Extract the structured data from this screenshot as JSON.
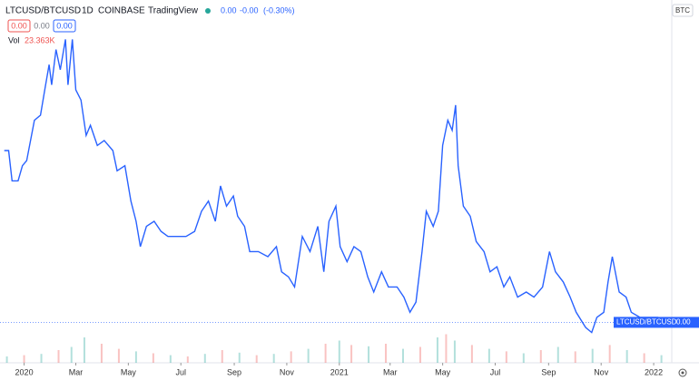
{
  "header": {
    "symbol": "LTCUSD/BTCUSD",
    "interval": "1D",
    "exchange": "COINBASE",
    "source": "TradingView",
    "last": "0.00",
    "change": "-0.00",
    "change_pct": "(-0.30%)",
    "buttons": [
      "0.00",
      "0.00",
      "0.00"
    ],
    "vol_label": "Vol",
    "vol_value": "23.363K",
    "currency": "BTC",
    "price_tag_name": "LTCUSD/BTCUSD",
    "price_tag_value": "0.00"
  },
  "chart_data": {
    "type": "line",
    "color": "#2962ff",
    "x": [
      -23,
      -18,
      -14,
      -7,
      -2,
      3,
      12,
      19,
      24,
      29,
      32,
      37,
      42,
      48,
      51,
      56,
      60,
      66,
      72,
      77,
      85,
      93,
      103,
      108,
      117,
      124,
      130,
      135,
      142,
      151,
      159,
      167,
      177,
      188,
      198,
      206,
      214,
      222,
      228,
      235,
      243,
      248,
      256,
      262,
      272,
      283,
      293,
      299,
      307,
      314,
      323,
      332,
      341,
      348,
      354,
      362,
      367,
      375,
      383,
      391,
      399,
      406,
      415,
      423,
      433,
      441,
      448,
      455,
      462,
      467,
      475,
      481,
      486,
      492,
      497,
      501,
      504,
      510,
      518,
      525,
      534,
      541,
      549,
      557,
      564,
      573,
      583,
      592,
      602,
      610,
      617,
      626,
      634,
      641,
      652,
      659,
      665,
      673,
      678,
      683,
      691,
      699,
      705,
      715,
      726,
      736,
      747
    ],
    "values": [
      0.0062,
      0.0062,
      0.0056,
      0.0056,
      0.0059,
      0.006,
      0.0068,
      0.0069,
      0.0074,
      0.0079,
      0.0075,
      0.0082,
      0.0078,
      0.0084,
      0.0075,
      0.0084,
      0.0074,
      0.0072,
      0.0065,
      0.0067,
      0.0063,
      0.0064,
      0.0062,
      0.0058,
      0.0059,
      0.0052,
      0.0048,
      0.0043,
      0.0047,
      0.0048,
      0.0046,
      0.0045,
      0.0045,
      0.0045,
      0.0046,
      0.005,
      0.0052,
      0.0048,
      0.0055,
      0.0051,
      0.0053,
      0.0049,
      0.0047,
      0.0042,
      0.0042,
      0.0041,
      0.0043,
      0.0038,
      0.0037,
      0.0035,
      0.0045,
      0.0042,
      0.0047,
      0.0038,
      0.0048,
      0.0051,
      0.0043,
      0.004,
      0.0043,
      0.0042,
      0.0037,
      0.0034,
      0.0038,
      0.0035,
      0.0035,
      0.0033,
      0.003,
      0.0032,
      0.0042,
      0.005,
      0.0047,
      0.005,
      0.0063,
      0.0068,
      0.0066,
      0.0071,
      0.0059,
      0.0051,
      0.0049,
      0.0044,
      0.0042,
      0.0038,
      0.0039,
      0.0035,
      0.0037,
      0.0033,
      0.0034,
      0.0033,
      0.0035,
      0.0042,
      0.0038,
      0.0036,
      0.0033,
      0.003,
      0.0027,
      0.0026,
      0.0029,
      0.003,
      0.0036,
      0.0041,
      0.0034,
      0.0033,
      0.003,
      0.0029,
      0.0029,
      0.0029,
      0.0028
    ],
    "xlim": [
      -28,
      752
    ],
    "ylim": [
      0.002,
      0.009
    ],
    "xticks": [
      {
        "value": 0,
        "label": "2020"
      },
      {
        "value": 60,
        "label": "Mar"
      },
      {
        "value": 121,
        "label": "May"
      },
      {
        "value": 182,
        "label": "Jul"
      },
      {
        "value": 244,
        "label": "Sep"
      },
      {
        "value": 305,
        "label": "Nov"
      },
      {
        "value": 366,
        "label": "2021"
      },
      {
        "value": 425,
        "label": "Mar"
      },
      {
        "value": 486,
        "label": "May"
      },
      {
        "value": 547,
        "label": "Jul"
      },
      {
        "value": 609,
        "label": "Sep"
      },
      {
        "value": 670,
        "label": "Nov"
      },
      {
        "value": 731,
        "label": "2022"
      }
    ],
    "volume": {
      "x": [
        -20,
        0,
        20,
        40,
        55,
        70,
        90,
        110,
        130,
        150,
        170,
        190,
        210,
        230,
        250,
        270,
        290,
        310,
        330,
        350,
        366,
        380,
        400,
        420,
        440,
        460,
        480,
        490,
        500,
        520,
        540,
        560,
        580,
        600,
        620,
        640,
        660,
        680,
        700,
        720,
        740
      ],
      "values": [
        10,
        12,
        14,
        20,
        25,
        40,
        30,
        22,
        18,
        15,
        12,
        10,
        14,
        20,
        16,
        12,
        14,
        18,
        22,
        30,
        35,
        28,
        26,
        30,
        22,
        25,
        40,
        45,
        35,
        28,
        22,
        18,
        15,
        20,
        25,
        18,
        22,
        28,
        20,
        15,
        12
      ],
      "colors": [
        "#26a69a",
        "#ef5350",
        "#26a69a",
        "#ef5350",
        "#26a69a",
        "#26a69a",
        "#ef5350",
        "#ef5350",
        "#26a69a",
        "#ef5350",
        "#26a69a",
        "#ef5350",
        "#26a69a",
        "#ef5350",
        "#26a69a",
        "#ef5350",
        "#26a69a",
        "#ef5350",
        "#26a69a",
        "#ef5350",
        "#26a69a",
        "#ef5350",
        "#26a69a",
        "#ef5350",
        "#26a69a",
        "#ef5350",
        "#26a69a",
        "#ef5350",
        "#26a69a",
        "#ef5350",
        "#26a69a",
        "#ef5350",
        "#26a69a",
        "#ef5350",
        "#26a69a",
        "#ef5350",
        "#26a69a",
        "#ef5350",
        "#26a69a",
        "#ef5350",
        "#26a69a"
      ],
      "ylim": [
        0,
        100
      ]
    }
  }
}
